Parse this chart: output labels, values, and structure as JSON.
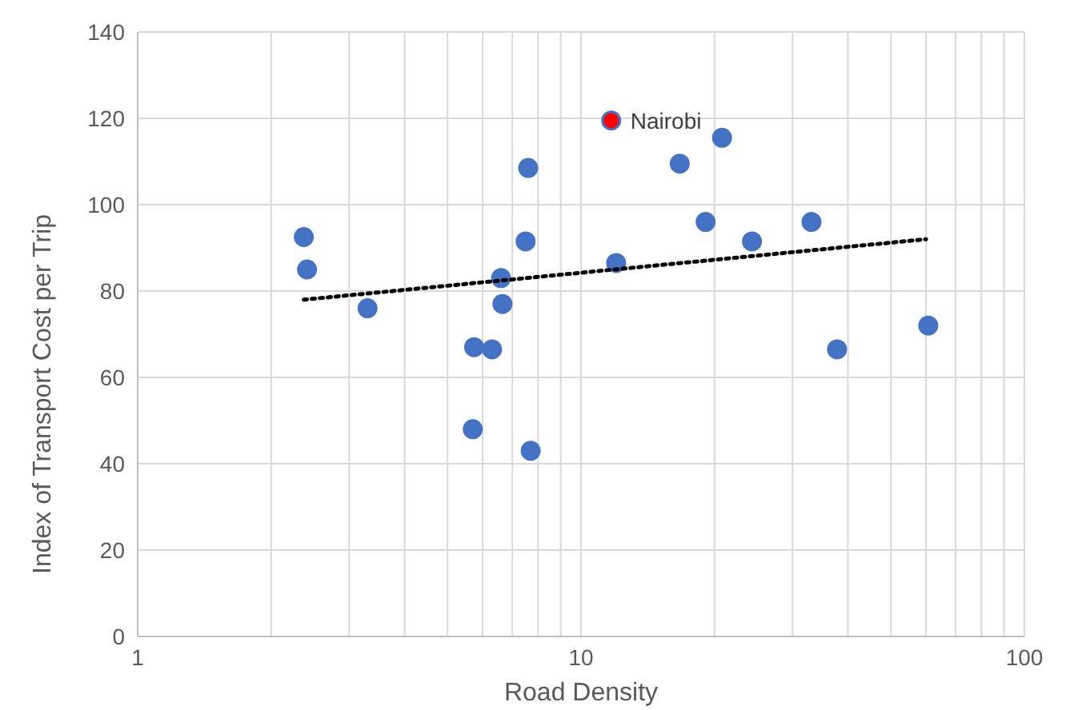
{
  "chart_data": {
    "type": "scatter",
    "xlabel": "Road Density",
    "ylabel": "Index of Transport Cost per Trip",
    "log": "x",
    "grid": true,
    "marker": "circle",
    "xlim": [
      1,
      100
    ],
    "xticks": [
      1,
      {
        "value": 2,
        "label": null
      },
      {
        "value": 3,
        "label": null
      },
      {
        "value": 4,
        "label": null
      },
      {
        "value": 5,
        "label": null
      },
      {
        "value": 6,
        "label": null
      },
      {
        "value": 7,
        "label": null
      },
      {
        "value": 8,
        "label": null
      },
      {
        "value": 9,
        "label": null
      },
      10,
      {
        "value": 20,
        "label": null
      },
      {
        "value": 30,
        "label": null
      },
      {
        "value": 40,
        "label": null
      },
      {
        "value": 50,
        "label": null
      },
      {
        "value": 60,
        "label": null
      },
      {
        "value": 70,
        "label": null
      },
      {
        "value": 80,
        "label": null
      },
      {
        "value": 90,
        "label": null
      },
      100
    ],
    "ylim": [
      0,
      140
    ],
    "yticks": [
      0,
      20,
      40,
      60,
      80,
      100,
      120,
      140
    ],
    "series": [
      {
        "color": "#4472c4",
        "x": [
          2.37,
          2.41,
          3.3,
          5.7,
          5.74,
          6.3,
          6.6,
          6.65,
          7.5,
          7.6,
          7.7,
          12.0,
          16.7,
          19.1,
          20.8,
          24.3,
          33.1,
          37.8,
          60.7
        ],
        "values": [
          92.5,
          85,
          76,
          48,
          67,
          66.5,
          83,
          77,
          91.5,
          108.5,
          43,
          86.5,
          109.5,
          96,
          115.5,
          91.5,
          96,
          66.5,
          72
        ]
      },
      {
        "type": "scatter",
        "color": "#ff0000",
        "x": [
          11.7
        ],
        "values": [
          119.5
        ]
      },
      {
        "type": "line",
        "color": "#000000",
        "line_style": "dotted",
        "marker": "none",
        "x": [
          2.37,
          60
        ],
        "values": [
          78,
          92
        ]
      }
    ],
    "annotations": [
      {
        "text": "Nairobi",
        "x": 11.7,
        "y": 119.5
      }
    ]
  }
}
